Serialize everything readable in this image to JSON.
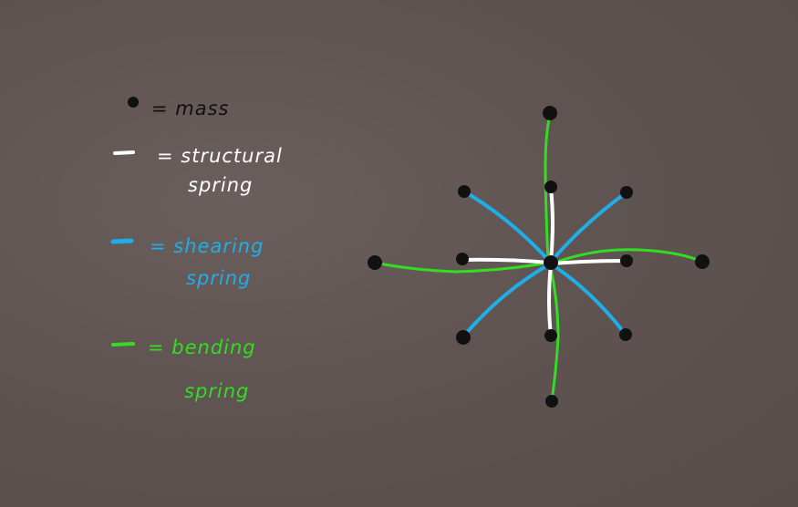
{
  "legend": {
    "mass": {
      "symbol": "●",
      "text": "= mass"
    },
    "structural": {
      "line1": "= structural",
      "line2": "spring"
    },
    "shearing": {
      "line1": "= shearing",
      "line2": "spring"
    },
    "bending": {
      "line1": "= bending",
      "line2": "spring"
    }
  },
  "colors": {
    "mass": "#111111",
    "structural": "#ffffff",
    "shearing": "#1eaee8",
    "bending": "#33dd22",
    "background": "#5f5452"
  }
}
